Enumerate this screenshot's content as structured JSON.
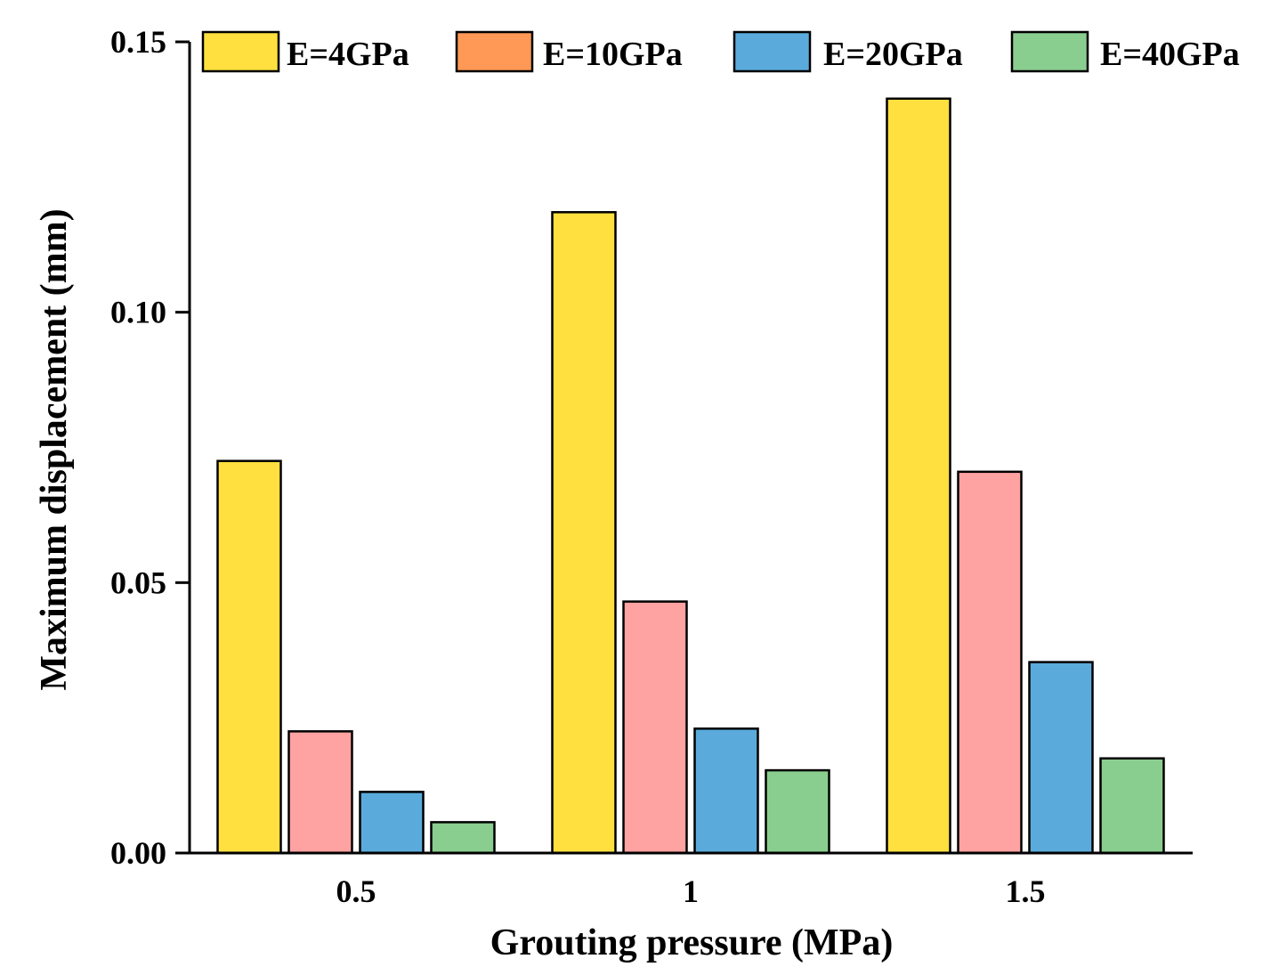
{
  "chart_data": {
    "type": "bar",
    "title": "",
    "xlabel": "Grouting pressure (MPa)",
    "ylabel": "Maximum displacement (mm)",
    "categories": [
      "0.5",
      "1",
      "1.5"
    ],
    "ylim": [
      0,
      0.15
    ],
    "yticks": [
      0.0,
      0.05,
      0.1,
      0.15
    ],
    "ytick_labels": [
      "0.00",
      "0.05",
      "0.10",
      "0.15"
    ],
    "grid": false,
    "legend_position": "top",
    "series": [
      {
        "name": "E=4GPa",
        "color": "#FFE03F",
        "values": [
          0.0725,
          0.1185,
          0.1395
        ]
      },
      {
        "name": "E=10GPa",
        "color": "#FFA2A2",
        "values": [
          0.0225,
          0.0465,
          0.0705
        ]
      },
      {
        "name": "E=20GPa",
        "color": "#5AABDC",
        "values": [
          0.0113,
          0.023,
          0.0353
        ]
      },
      {
        "name": "E=40GPa",
        "color": "#8ACE8F",
        "values": [
          0.0057,
          0.0153,
          0.0175
        ]
      }
    ],
    "legend_swatch_colors": [
      "#FFE03F",
      "#FF9955",
      "#5AABDC",
      "#8ACE8F"
    ]
  }
}
